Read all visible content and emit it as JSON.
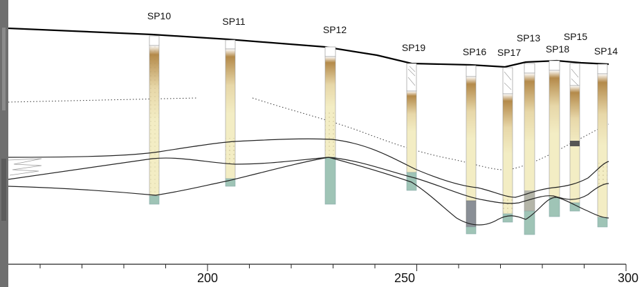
{
  "boreholes": [
    {
      "id": "sp10",
      "label": "SP10"
    },
    {
      "id": "sp11",
      "label": "SP11"
    },
    {
      "id": "sp12",
      "label": "SP12"
    },
    {
      "id": "sp19",
      "label": "SP19"
    },
    {
      "id": "sp16",
      "label": "SP16"
    },
    {
      "id": "sp17",
      "label": "SP17"
    },
    {
      "id": "sp13",
      "label": "SP13"
    },
    {
      "id": "sp18",
      "label": "SP18"
    },
    {
      "id": "sp15",
      "label": "SP15"
    },
    {
      "id": "sp14",
      "label": "SP14"
    }
  ],
  "axis": {
    "ticks": [
      "200",
      "250",
      "300"
    ]
  },
  "colors": {
    "surface_line": "#000000",
    "boundary_line": "#222222",
    "sand_pale": "#f3edc4",
    "sand_brown": "#b48a4a",
    "gravel_green": "#9fc4b6",
    "dark_layer": "#8a8f96",
    "photo_strip": "#6f6f6f"
  }
}
